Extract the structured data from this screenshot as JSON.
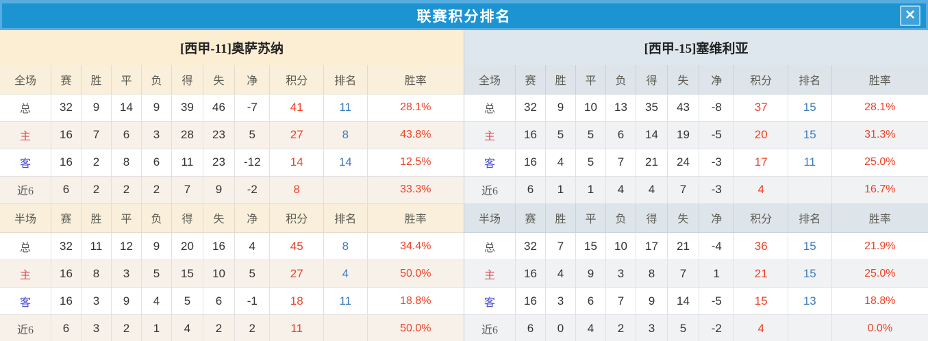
{
  "title": "联赛积分排名",
  "close_icon": "✕",
  "stat_columns": [
    "赛",
    "胜",
    "平",
    "负",
    "得",
    "失",
    "净",
    "积分",
    "排名",
    "胜率"
  ],
  "colors": {
    "titlebar_blue": "#1d94d2",
    "titlebar_light_edge": "#58ade0",
    "left_panel_cream": "#fbeed2",
    "right_panel_bluegray": "#dde7ed",
    "points_red": "#ee4227",
    "rank_blue": "#3f7cba",
    "home_label_red": "#e14a52",
    "away_label_blue": "#4b4bd0"
  },
  "teams": [
    {
      "name": "[西甲-11]奥萨苏纳",
      "full": {
        "label": "全场",
        "rows": [
          {
            "label": "总",
            "type": "total",
            "cells": [
              "32",
              "9",
              "14",
              "9",
              "39",
              "46",
              "-7"
            ],
            "points": "41",
            "rank": "11",
            "rate": "28.1%"
          },
          {
            "label": "主",
            "type": "home",
            "cells": [
              "16",
              "7",
              "6",
              "3",
              "28",
              "23",
              "5"
            ],
            "points": "27",
            "rank": "8",
            "rate": "43.8%"
          },
          {
            "label": "客",
            "type": "away",
            "cells": [
              "16",
              "2",
              "8",
              "6",
              "11",
              "23",
              "-12"
            ],
            "points": "14",
            "rank": "14",
            "rate": "12.5%"
          },
          {
            "label": "近6",
            "type": "recent6",
            "cells": [
              "6",
              "2",
              "2",
              "2",
              "7",
              "9",
              "-2"
            ],
            "points": "8",
            "rank": "",
            "rate": "33.3%"
          }
        ]
      },
      "half": {
        "label": "半场",
        "rows": [
          {
            "label": "总",
            "type": "total",
            "cells": [
              "32",
              "11",
              "12",
              "9",
              "20",
              "16",
              "4"
            ],
            "points": "45",
            "rank": "8",
            "rate": "34.4%"
          },
          {
            "label": "主",
            "type": "home",
            "cells": [
              "16",
              "8",
              "3",
              "5",
              "15",
              "10",
              "5"
            ],
            "points": "27",
            "rank": "4",
            "rate": "50.0%"
          },
          {
            "label": "客",
            "type": "away",
            "cells": [
              "16",
              "3",
              "9",
              "4",
              "5",
              "6",
              "-1"
            ],
            "points": "18",
            "rank": "11",
            "rate": "18.8%"
          },
          {
            "label": "近6",
            "type": "recent6",
            "cells": [
              "6",
              "3",
              "2",
              "1",
              "4",
              "2",
              "2"
            ],
            "points": "11",
            "rank": "",
            "rate": "50.0%"
          }
        ]
      }
    },
    {
      "name": "[西甲-15]塞维利亚",
      "full": {
        "label": "全场",
        "rows": [
          {
            "label": "总",
            "type": "total",
            "cells": [
              "32",
              "9",
              "10",
              "13",
              "35",
              "43",
              "-8"
            ],
            "points": "37",
            "rank": "15",
            "rate": "28.1%"
          },
          {
            "label": "主",
            "type": "home",
            "cells": [
              "16",
              "5",
              "5",
              "6",
              "14",
              "19",
              "-5"
            ],
            "points": "20",
            "rank": "15",
            "rate": "31.3%"
          },
          {
            "label": "客",
            "type": "away",
            "cells": [
              "16",
              "4",
              "5",
              "7",
              "21",
              "24",
              "-3"
            ],
            "points": "17",
            "rank": "11",
            "rate": "25.0%"
          },
          {
            "label": "近6",
            "type": "recent6",
            "cells": [
              "6",
              "1",
              "1",
              "4",
              "4",
              "7",
              "-3"
            ],
            "points": "4",
            "rank": "",
            "rate": "16.7%"
          }
        ]
      },
      "half": {
        "label": "半场",
        "rows": [
          {
            "label": "总",
            "type": "total",
            "cells": [
              "32",
              "7",
              "15",
              "10",
              "17",
              "21",
              "-4"
            ],
            "points": "36",
            "rank": "15",
            "rate": "21.9%"
          },
          {
            "label": "主",
            "type": "home",
            "cells": [
              "16",
              "4",
              "9",
              "3",
              "8",
              "7",
              "1"
            ],
            "points": "21",
            "rank": "15",
            "rate": "25.0%"
          },
          {
            "label": "客",
            "type": "away",
            "cells": [
              "16",
              "3",
              "6",
              "7",
              "9",
              "14",
              "-5"
            ],
            "points": "15",
            "rank": "13",
            "rate": "18.8%"
          },
          {
            "label": "近6",
            "type": "recent6",
            "cells": [
              "6",
              "0",
              "4",
              "2",
              "3",
              "5",
              "-2"
            ],
            "points": "4",
            "rank": "",
            "rate": "0.0%"
          }
        ]
      }
    }
  ]
}
